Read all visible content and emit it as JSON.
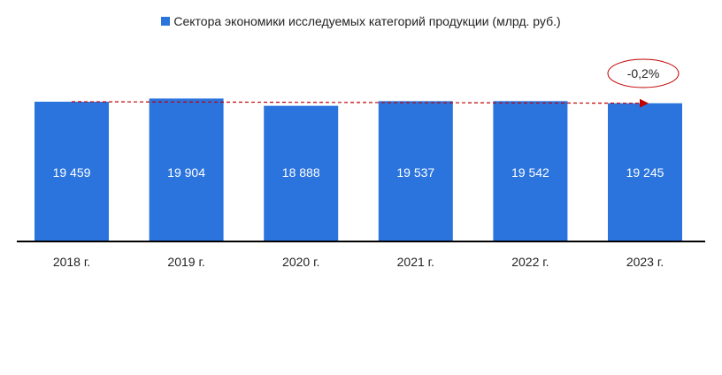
{
  "chart_data": {
    "type": "bar",
    "categories": [
      "2018 г.",
      "2019 г.",
      "2020 г.",
      "2021 г.",
      "2022 г.",
      "2023 г."
    ],
    "series": [
      {
        "name": "Сектора экономики исследуемых категорий продукции (млрд. руб.)",
        "values": [
          19459,
          19904,
          18888,
          19537,
          19542,
          19245
        ],
        "value_labels": [
          "19 459",
          "19 904",
          "18 888",
          "19 537",
          "19 542",
          "19 245"
        ],
        "color": "#2b74de"
      }
    ],
    "legend": "top",
    "grid": false,
    "ylim": [
      0,
      20500
    ],
    "annotation": {
      "text": "-0,2%",
      "from_category": "2018 г.",
      "to_category": "2023 г.",
      "arrow_color": "#c00000",
      "ellipse_color": "#c00000"
    }
  }
}
